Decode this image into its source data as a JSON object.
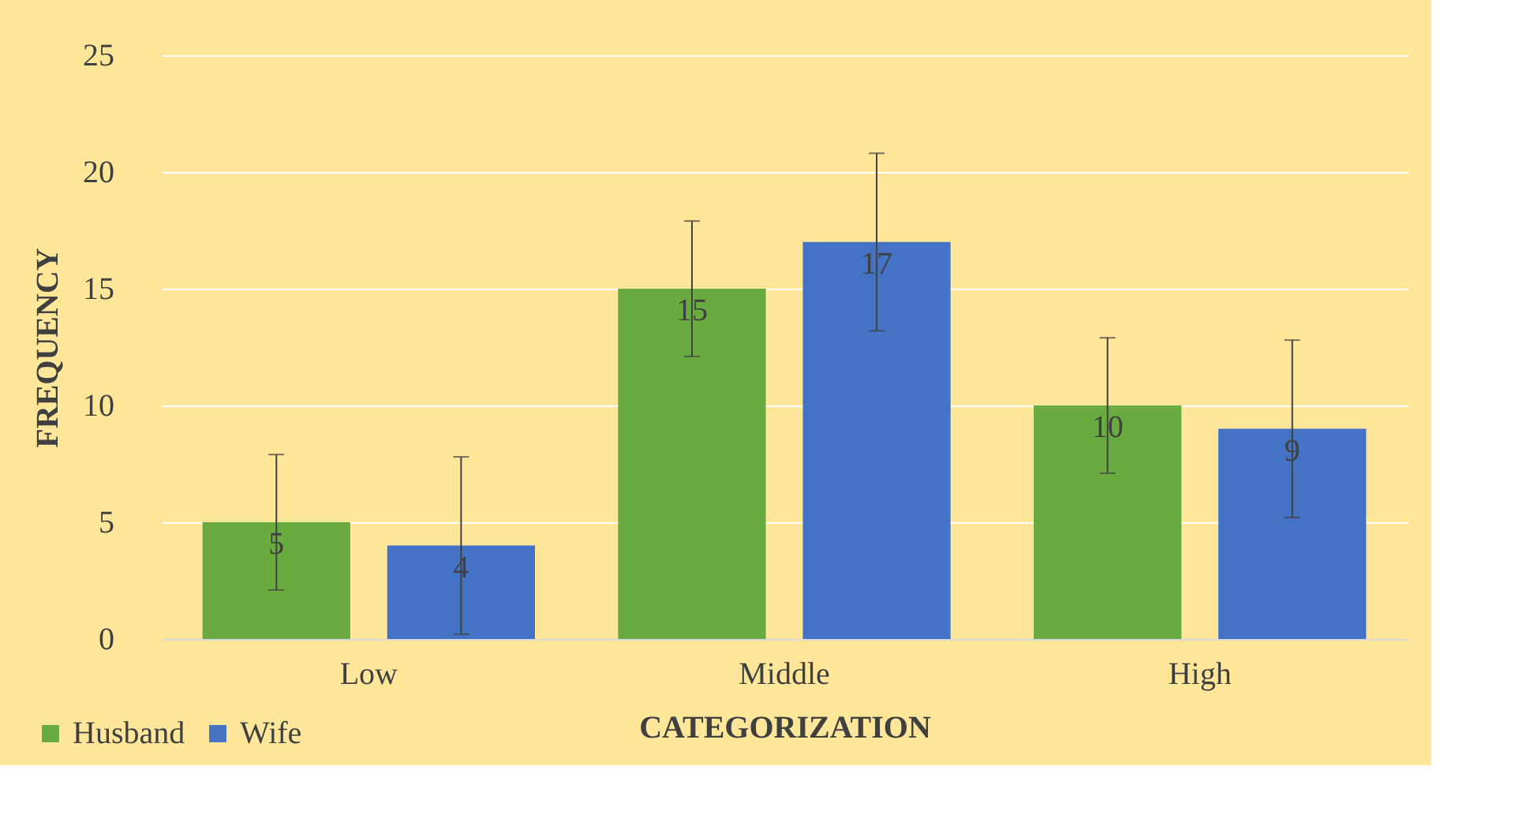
{
  "chart_data": {
    "type": "bar",
    "xlabel": "CATEGORIZATION",
    "ylabel": "FREQUENCY",
    "categories": [
      "Low",
      "Middle",
      "High"
    ],
    "series": [
      {
        "name": "Husband",
        "color": "#6aab3f",
        "values": [
          5,
          15,
          10
        ],
        "errors": [
          2.9,
          2.9,
          2.9
        ]
      },
      {
        "name": "Wife",
        "color": "#4472c4",
        "values": [
          4,
          17,
          9
        ],
        "errors": [
          3.8,
          3.8,
          3.8
        ]
      }
    ],
    "ylim": [
      0,
      25
    ],
    "yticks": [
      0,
      5,
      10,
      15,
      20,
      25
    ],
    "grid": "y",
    "legend": "bottom left",
    "data_labels": true
  }
}
